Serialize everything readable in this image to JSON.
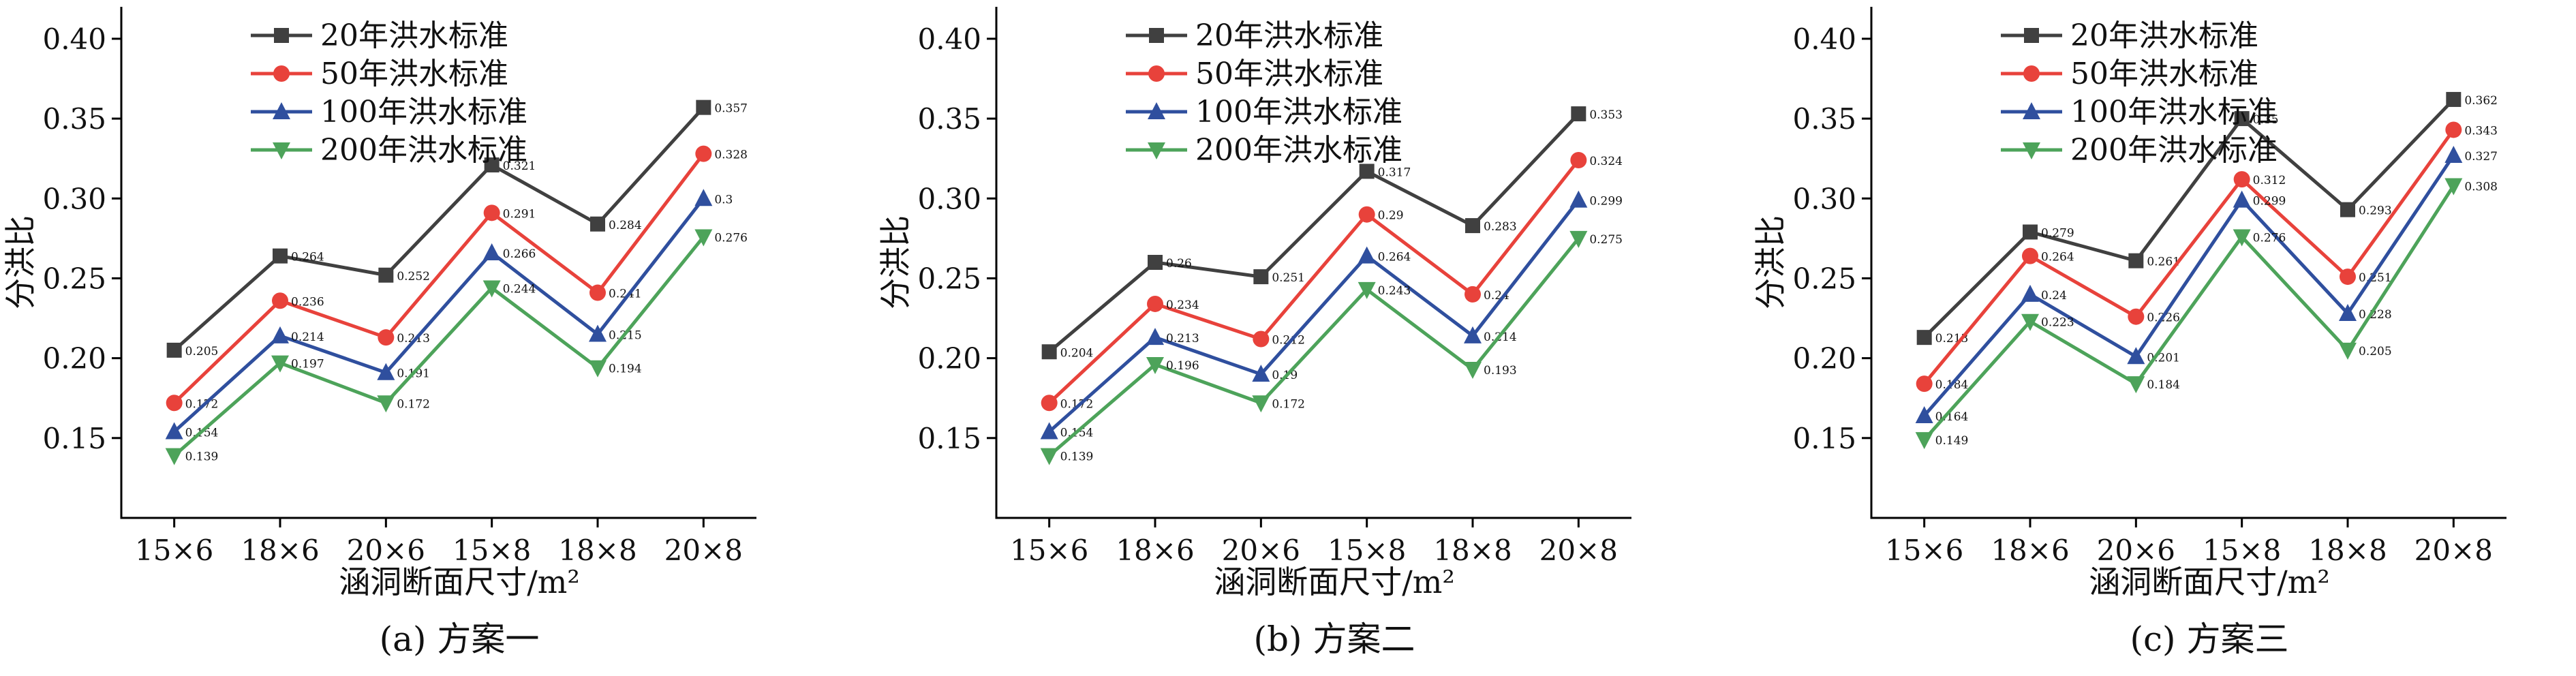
{
  "chart_data": [
    {
      "type": "line",
      "caption": "(a) 方案一",
      "xlabel": "涵洞断面尺寸/m²",
      "ylabel": "分洪比",
      "ylim": [
        0.1,
        0.42
      ],
      "yticks": [
        "0.15",
        "0.20",
        "0.25",
        "0.30",
        "0.35",
        "0.40"
      ],
      "categories": [
        "15×6",
        "18×6",
        "20×6",
        "15×8",
        "18×8",
        "20×8"
      ],
      "legend_position": "top-left",
      "series": [
        {
          "name": "20年洪水标准",
          "values": [
            0.205,
            0.264,
            0.252,
            0.321,
            0.284,
            0.357
          ],
          "labels": [
            "0.205",
            "0.264",
            "0.252",
            "0.321",
            "0.284",
            "0.357"
          ]
        },
        {
          "name": "50年洪水标准",
          "values": [
            0.172,
            0.236,
            0.213,
            0.291,
            0.241,
            0.328
          ],
          "labels": [
            "0.172",
            "0.236",
            "0.213",
            "0.291",
            "0.241",
            "0.328"
          ]
        },
        {
          "name": "100年洪水标准",
          "values": [
            0.154,
            0.214,
            0.191,
            0.266,
            0.215,
            0.3
          ],
          "labels": [
            "0.154",
            "0.214",
            "0.191",
            "0.266",
            "0.215",
            "0.3"
          ]
        },
        {
          "name": "200年洪水标准",
          "values": [
            0.139,
            0.197,
            0.172,
            0.244,
            0.194,
            0.276
          ],
          "labels": [
            "0.139",
            "0.197",
            "0.172",
            "0.244",
            "0.194",
            "0.276"
          ]
        }
      ]
    },
    {
      "type": "line",
      "caption": "(b) 方案二",
      "xlabel": "涵洞断面尺寸/m²",
      "ylabel": "分洪比",
      "ylim": [
        0.1,
        0.42
      ],
      "yticks": [
        "0.15",
        "0.20",
        "0.25",
        "0.30",
        "0.35",
        "0.40"
      ],
      "categories": [
        "15×6",
        "18×6",
        "20×6",
        "15×8",
        "18×8",
        "20×8"
      ],
      "legend_position": "top-left",
      "series": [
        {
          "name": "20年洪水标准",
          "values": [
            0.204,
            0.26,
            0.251,
            0.317,
            0.283,
            0.353
          ],
          "labels": [
            "0.204",
            "0.26",
            "0.251",
            "0.317",
            "0.283",
            "0.353"
          ]
        },
        {
          "name": "50年洪水标准",
          "values": [
            0.172,
            0.234,
            0.212,
            0.29,
            0.24,
            0.324
          ],
          "labels": [
            "0.172",
            "0.234",
            "0.212",
            "0.29",
            "0.24",
            "0.324"
          ]
        },
        {
          "name": "100年洪水标准",
          "values": [
            0.154,
            0.213,
            0.19,
            0.264,
            0.214,
            0.299
          ],
          "labels": [
            "0.154",
            "0.213",
            "0.19",
            "0.264",
            "0.214",
            "0.299"
          ]
        },
        {
          "name": "200年洪水标准",
          "values": [
            0.139,
            0.196,
            0.172,
            0.243,
            0.193,
            0.275
          ],
          "labels": [
            "0.139",
            "0.196",
            "0.172",
            "0.243",
            "0.193",
            "0.275"
          ]
        }
      ]
    },
    {
      "type": "line",
      "caption": "(c) 方案三",
      "xlabel": "涵洞断面尺寸/m²",
      "ylabel": "分洪比",
      "ylim": [
        0.1,
        0.42
      ],
      "yticks": [
        "0.15",
        "0.20",
        "0.25",
        "0.30",
        "0.35",
        "0.40"
      ],
      "categories": [
        "15×6",
        "18×6",
        "20×6",
        "15×8",
        "18×8",
        "20×8"
      ],
      "legend_position": "top-left",
      "series": [
        {
          "name": "20年洪水标准",
          "values": [
            0.213,
            0.279,
            0.261,
            0.35,
            0.293,
            0.362
          ],
          "labels": [
            "0.213",
            "0.279",
            "0.261",
            "0.35",
            "0.293",
            "0.362"
          ]
        },
        {
          "name": "50年洪水标准",
          "values": [
            0.184,
            0.264,
            0.226,
            0.312,
            0.251,
            0.343
          ],
          "labels": [
            "0.184",
            "0.264",
            "0.226",
            "0.312",
            "0.251",
            "0.343"
          ]
        },
        {
          "name": "100年洪水标准",
          "values": [
            0.164,
            0.24,
            0.201,
            0.299,
            0.228,
            0.327
          ],
          "labels": [
            "0.164",
            "0.24",
            "0.201",
            "0.299",
            "0.228",
            "0.327"
          ]
        },
        {
          "name": "200年洪水标准",
          "values": [
            0.149,
            0.223,
            0.184,
            0.276,
            0.205,
            0.308
          ],
          "labels": [
            "0.149",
            "0.223",
            "0.184",
            "0.276",
            "0.205",
            "0.308"
          ]
        }
      ]
    }
  ],
  "series_styles": [
    {
      "color": "#404040",
      "marker": "square-marker-icon"
    },
    {
      "color": "#e8423b",
      "marker": "circle-marker-icon"
    },
    {
      "color": "#2f4f9e",
      "marker": "triangle-up-marker-icon"
    },
    {
      "color": "#4da35a",
      "marker": "triangle-down-marker-icon"
    }
  ]
}
